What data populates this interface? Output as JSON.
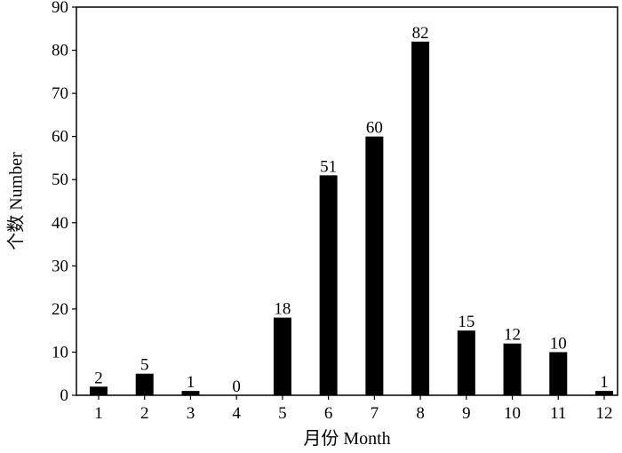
{
  "chart_data": {
    "type": "bar",
    "categories": [
      "1",
      "2",
      "3",
      "4",
      "5",
      "6",
      "7",
      "8",
      "9",
      "10",
      "11",
      "12"
    ],
    "values": [
      2,
      5,
      1,
      0,
      18,
      51,
      60,
      82,
      15,
      12,
      10,
      1
    ],
    "data_labels": [
      "2",
      "5",
      "1",
      "0",
      "18",
      "51",
      "60",
      "82",
      "15",
      "12",
      "10",
      "1"
    ],
    "title": "",
    "xlabel": "月份 Month",
    "ylabel": "个数 Number",
    "ylim": [
      0,
      90
    ],
    "yticks": [
      "0",
      "10",
      "20",
      "30",
      "40",
      "50",
      "60",
      "70",
      "80",
      "90"
    ],
    "bar_color": "#000000",
    "grid": false,
    "legend": "none"
  }
}
